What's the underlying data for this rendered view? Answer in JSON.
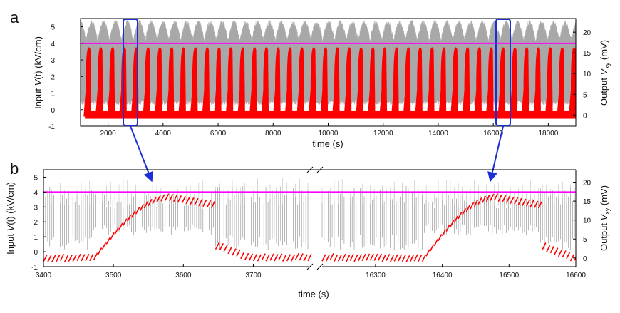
{
  "chart_data": [
    {
      "panel_label": "a",
      "type": "line",
      "xlabel": "time (s)",
      "ylabel_left": {
        "pre": "Input ",
        "italic": "V",
        "post": "(t) (kV/cm)"
      },
      "ylabel_right": {
        "pre": "Output ",
        "italic": "V",
        "sub": "xy",
        "post": " (mV)"
      },
      "xlim": [
        1000,
        19000
      ],
      "ylim_left": [
        -1,
        5.5
      ],
      "ylim_right": [
        -2.7,
        23.3
      ],
      "xticks": [
        2000,
        4000,
        6000,
        8000,
        10000,
        12000,
        14000,
        16000,
        18000
      ],
      "yticks_left": [
        -1,
        0,
        1,
        2,
        3,
        4,
        5
      ],
      "yticks_right": [
        0,
        5,
        10,
        15,
        20
      ],
      "threshold_left": 4.0,
      "series": [
        {
          "name": "Output Vxy (gray)",
          "color": "#bdbdbd",
          "axis": "right",
          "pattern": "oscillation, envelope ~3.5 to ~22 mV, period ~430 s"
        },
        {
          "name": "Input V(t) (red)",
          "color": "#ff0000",
          "axis": "left",
          "pattern": "pulse train, baseline ~ -0.4, peak ~ 3.9 kV/cm, period 430 s, first pulse ~1200 s"
        }
      ],
      "highlight_windows": [
        [
          3400,
          3850
        ],
        [
          16150,
          16600
        ]
      ]
    },
    {
      "panel_label": "b",
      "type": "line",
      "xlabel": "time (s)",
      "ylabel_left": {
        "pre": "Input ",
        "italic": "V",
        "post": "(t) (kV/cm)"
      },
      "ylabel_right": {
        "pre": "Output ",
        "italic": "V",
        "sub": "xy",
        "post": " (mV)"
      },
      "broken_axis": true,
      "segments": [
        {
          "xlim": [
            3400,
            3780
          ],
          "xticks": [
            3400,
            3500,
            3600,
            3700
          ],
          "pulse_start": 3470,
          "pulse_end": 3645
        },
        {
          "xlim": [
            16220,
            16600
          ],
          "xticks": [
            16300,
            16400,
            16500,
            16600
          ],
          "pulse_start": 16370,
          "pulse_end": 16545
        }
      ],
      "ylim_left": [
        -1,
        5.5
      ],
      "ylim_right": [
        -2.3,
        23.3
      ],
      "yticks_left": [
        -1,
        0,
        1,
        2,
        3,
        4,
        5
      ],
      "yticks_right": [
        0,
        5,
        10,
        15,
        20
      ],
      "threshold_left": 4.0,
      "series": [
        {
          "name": "Output Vxy (gray)",
          "color": "#888888",
          "axis": "right",
          "pattern": "fast oscillation, period ~6 s, envelope ~2 to ~19 mV"
        },
        {
          "name": "Input V(t) (red)",
          "color": "#ff0000",
          "axis": "left",
          "pattern": "sawtooth points, baseline ~ -0.2, rising to ~3.9, falling back"
        }
      ]
    }
  ],
  "colors": {
    "threshold": "#ff00ff",
    "zoom_box": "#1a2fd6",
    "input": "#ff0000",
    "output": "#b5b5b5"
  }
}
